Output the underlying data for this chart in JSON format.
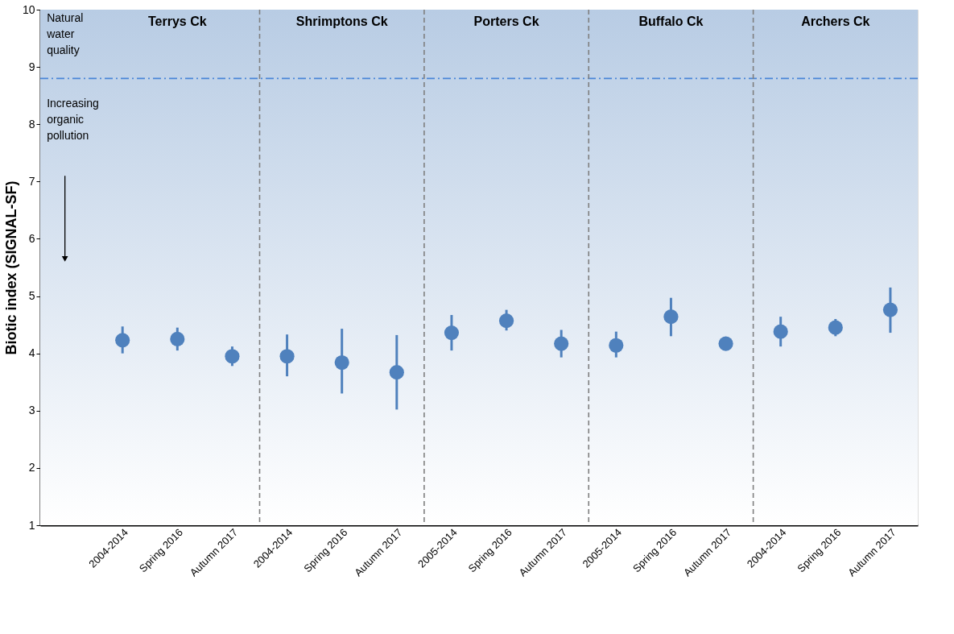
{
  "chart_data": {
    "type": "scatter",
    "ylabel": "Biotic index (SIGNAL-SF)",
    "categories": [
      "2004-2014",
      "Spring 2016",
      "Autumn 2017",
      "2004-2014",
      "Spring 2016",
      "Autumn 2017",
      "2005-2014",
      "Spring 2016",
      "Autumn 2017",
      "2005-2014",
      "Spring 2016",
      "Autumn 2017",
      "2004-2014",
      "Spring 2016",
      "Autumn 2017"
    ],
    "series": [
      {
        "color": "#4f81bd",
        "values": [
          4.23,
          4.25,
          3.95,
          3.95,
          3.84,
          3.67,
          4.36,
          4.57,
          4.17,
          4.14,
          4.64,
          4.17,
          4.38,
          4.45,
          4.76
        ],
        "errors": [
          [
            4.0,
            4.47
          ],
          [
            4.05,
            4.45
          ],
          [
            3.78,
            4.12
          ],
          [
            3.6,
            4.33
          ],
          [
            3.3,
            4.43
          ],
          [
            3.02,
            4.32
          ],
          [
            4.05,
            4.67
          ],
          [
            4.4,
            4.76
          ],
          [
            3.93,
            4.41
          ],
          [
            3.93,
            4.38
          ],
          [
            4.3,
            4.97
          ],
          null,
          [
            4.12,
            4.64
          ],
          [
            4.3,
            4.6
          ],
          [
            4.36,
            5.15
          ]
        ]
      }
    ],
    "ylim": [
      1,
      10
    ],
    "yticks": [
      1,
      2,
      3,
      4,
      5,
      6,
      7,
      8,
      9,
      10
    ],
    "marker": "circle",
    "ref_lines": [
      {
        "axis": "y",
        "value": 8.8,
        "color": "#4a86d8",
        "line_style": "dashdot"
      }
    ],
    "annotations": [
      "Natural water quality",
      "Increasing organic pollution",
      "Terrys Ck",
      "Shrimptons Ck",
      "Porters Ck",
      "Buffalo Ck",
      "Archers Ck"
    ]
  }
}
